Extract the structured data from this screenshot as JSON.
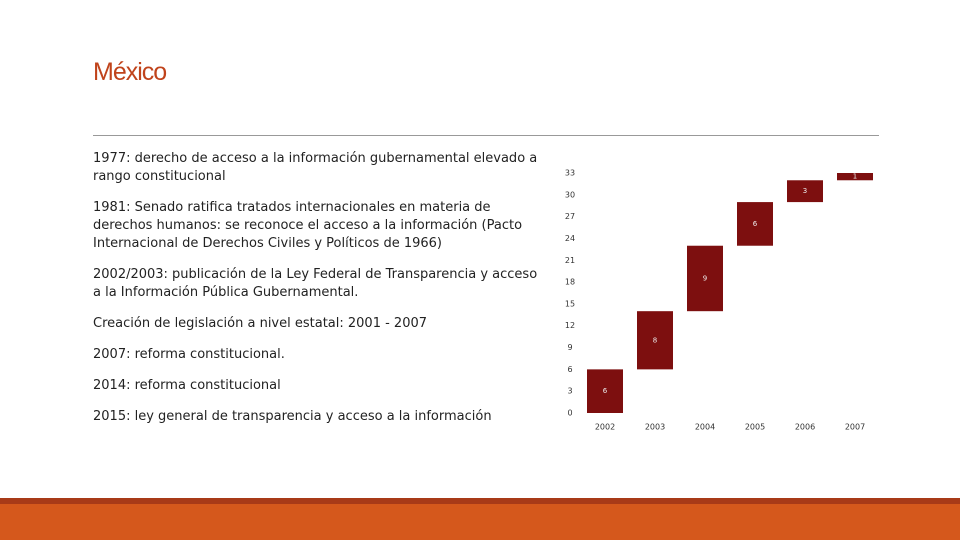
{
  "slide": {
    "title": "México",
    "items": [
      "1977: derecho de acceso a la información gubernamental elevado a rango constitucional",
      "1981: Senado ratifica tratados internacionales en materia de derechos humanos: se reconoce el acceso a la información (Pacto Internacional de Derechos Civiles y Políticos de 1966)",
      "2002/2003: publicación de la Ley Federal de Transparencia y acceso a la Información Pública Gubernamental.",
      "Creación de legislación a nivel estatal: 2001 - 2007",
      "2007: reforma constitucional.",
      "2014: reforma constitucional",
      "2015: ley general de transparencia y acceso a la información"
    ]
  },
  "chart_data": {
    "type": "waterfall",
    "categories": [
      "2002",
      "2003",
      "2004",
      "2005",
      "2006",
      "2007"
    ],
    "values": [
      6,
      8,
      9,
      6,
      3,
      1
    ],
    "color": "#7d0f0f",
    "ylim": [
      0,
      33
    ],
    "yticks": [
      0,
      3,
      6,
      9,
      12,
      15,
      18,
      21,
      24,
      27,
      30,
      33
    ]
  }
}
